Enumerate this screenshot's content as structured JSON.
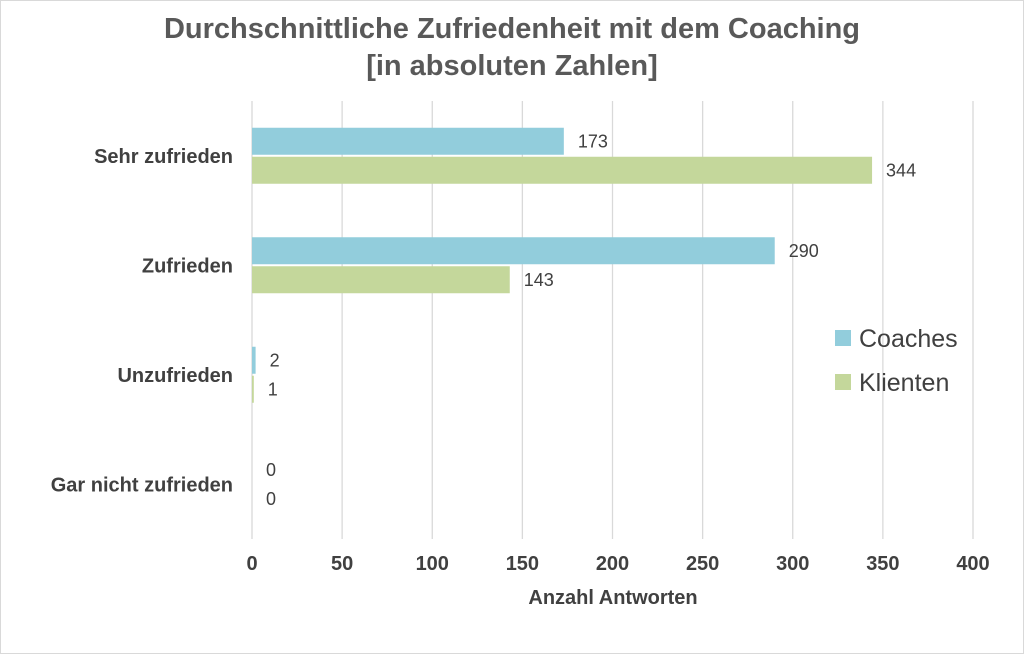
{
  "chart_data": {
    "type": "bar",
    "orientation": "horizontal",
    "title_lines": [
      "Durchschnittliche Zufriedenheit mit dem Coaching",
      "[in absoluten Zahlen]"
    ],
    "xlabel": "Anzahl Antworten",
    "ylabel": "",
    "categories": [
      "Sehr zufrieden",
      "Zufrieden",
      "Unzufrieden",
      "Gar nicht zufrieden"
    ],
    "series": [
      {
        "name": "Coaches",
        "color": "#92cddc",
        "values": [
          173,
          290,
          2,
          0
        ]
      },
      {
        "name": "Klienten",
        "color": "#c4d79b",
        "values": [
          344,
          143,
          1,
          0
        ]
      }
    ],
    "xlim": [
      0,
      400
    ],
    "xticks": [
      0,
      50,
      100,
      150,
      200,
      250,
      300,
      350,
      400
    ],
    "grid": true,
    "data_labels": true,
    "legend_position": "right"
  }
}
